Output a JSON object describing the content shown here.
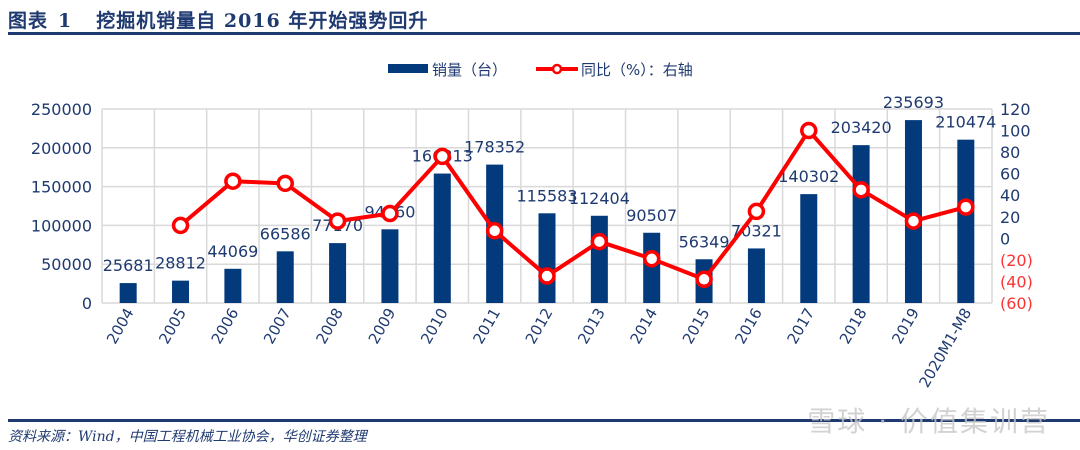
{
  "title": {
    "label": "图表",
    "number": "1",
    "text": "挖掘机销量自 2016 年开始强势回升"
  },
  "source": "资料来源：Wind，中国工程机械工业协会，华创证券整理",
  "watermark": "雪球 · 价值集训营",
  "colors": {
    "bar": "#033a7c",
    "line": "#ff0000",
    "axis_text": "#1f3a70",
    "neg_text": "#ff3333",
    "grid": "#d9d9d9"
  },
  "chart_data": {
    "type": "bar+line",
    "categories": [
      "2004",
      "2005",
      "2006",
      "2007",
      "2008",
      "2009",
      "2010",
      "2011",
      "2012",
      "2013",
      "2014",
      "2015",
      "2016",
      "2017",
      "2018",
      "2019",
      "2020M1-M8"
    ],
    "series": [
      {
        "name": "销量（台）",
        "type": "bar",
        "axis": "left",
        "values": [
          25681,
          28812,
          44069,
          66586,
          77170,
          94960,
          166813,
          178352,
          115583,
          112404,
          90507,
          56349,
          70321,
          140302,
          203420,
          235693,
          210474
        ]
      },
      {
        "name": "同比（%）：右轴",
        "type": "line",
        "axis": "right",
        "values": [
          null,
          12,
          53,
          51,
          16,
          23,
          76,
          7,
          -35,
          -3,
          -19,
          -38,
          25,
          100,
          45,
          16,
          29
        ]
      }
    ],
    "left_axis": {
      "range": [
        0,
        250000
      ],
      "ticks": [
        "0",
        "50000",
        "100000",
        "150000",
        "200000",
        "250000"
      ]
    },
    "right_axis": {
      "range": [
        -60,
        120
      ],
      "ticks": [
        "(60)",
        "(40)",
        "(20)",
        "0",
        "20",
        "40",
        "60",
        "80",
        "100",
        "120"
      ]
    },
    "legend": {
      "placement": "top-center",
      "items": [
        "销量（台）",
        "同比（%）：右轴"
      ]
    },
    "grid": true
  }
}
